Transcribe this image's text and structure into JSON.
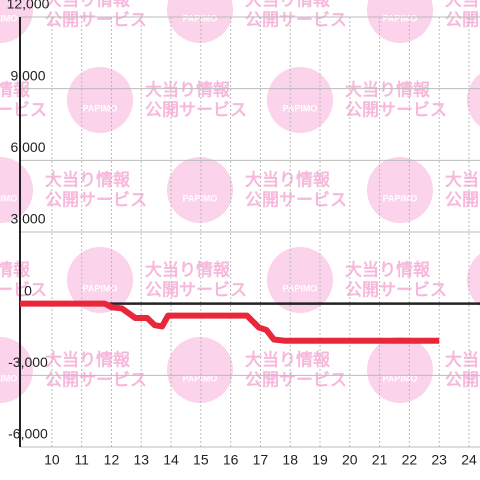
{
  "chart_data": {
    "type": "line",
    "watermark": [
      "大当り情報",
      "公開サービス",
      "PAPIMO"
    ],
    "x": [
      8.93,
      11.78,
      12.0,
      12.35,
      12.8,
      13.2,
      13.45,
      13.7,
      13.9,
      14.1,
      16.55,
      16.95,
      17.2,
      17.45,
      17.8,
      23.0
    ],
    "series": [
      {
        "color": "#e8283a",
        "values": [
          0,
          0,
          -150,
          -200,
          -600,
          -600,
          -900,
          -950,
          -500,
          -500,
          -500,
          -1000,
          -1100,
          -1500,
          -1550,
          -1550
        ]
      }
    ],
    "xlim": [
      8.93,
      24.37
    ],
    "xticks": [
      10,
      11,
      12,
      13,
      14,
      15,
      16,
      17,
      18,
      19,
      20,
      21,
      22,
      23,
      24
    ],
    "ylim": [
      -6000,
      12000
    ],
    "yticks": [
      {
        "value": -6000,
        "label": "-6,000"
      },
      {
        "value": -3000,
        "label": "-3,000"
      },
      0,
      {
        "value": 3000,
        "label": "3,000"
      },
      {
        "value": 6000,
        "label": "6,000"
      },
      {
        "value": 9000,
        "label": "9,000"
      },
      {
        "value": 12000,
        "label": "12,000"
      }
    ],
    "grid": true
  }
}
